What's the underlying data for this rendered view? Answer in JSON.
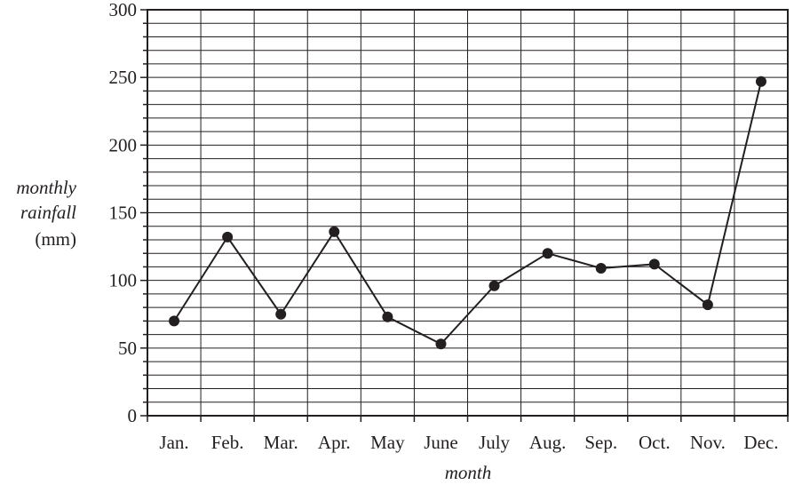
{
  "chart_data": {
    "type": "line",
    "title": "",
    "xlabel": "month",
    "ylabel_lines": [
      "monthly",
      "rainfall",
      "(mm)"
    ],
    "categories": [
      "Jan.",
      "Feb.",
      "Mar.",
      "Apr.",
      "May",
      "June",
      "July",
      "Aug.",
      "Sep.",
      "Oct.",
      "Nov.",
      "Dec."
    ],
    "values": [
      70,
      132,
      75,
      136,
      73,
      53,
      96,
      120,
      109,
      112,
      82,
      247
    ],
    "ylim": [
      0,
      300
    ],
    "yticks": [
      0,
      50,
      100,
      150,
      200,
      250,
      300
    ],
    "grid": true,
    "marker": "filled-circle",
    "color": "#231f20"
  }
}
